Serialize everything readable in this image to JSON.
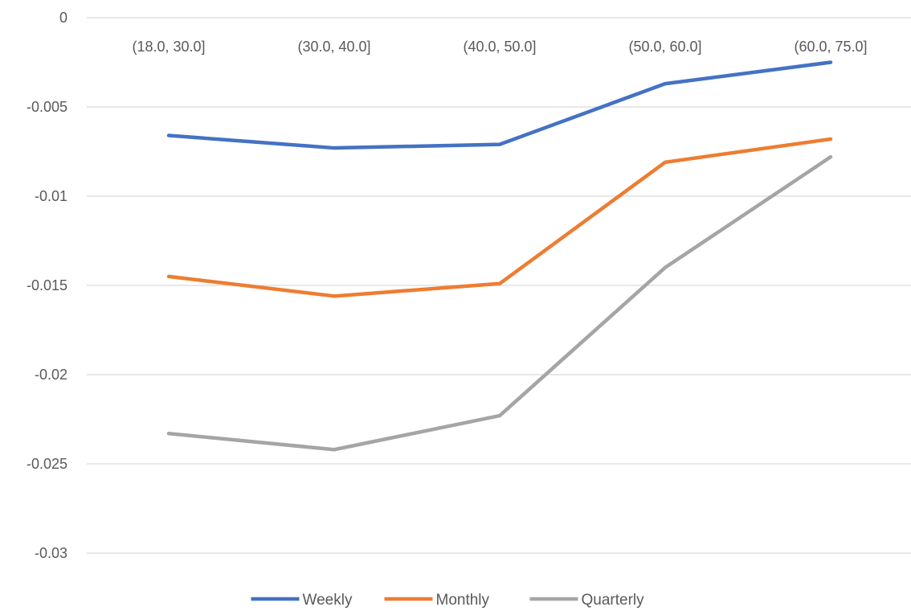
{
  "chart_data": {
    "type": "line",
    "title": "",
    "xlabel": "",
    "ylabel": "",
    "categories": [
      "(18.0, 30.0]",
      "(30.0, 40.0]",
      "(40.0, 50.0]",
      "(50.0, 60.0]",
      "(60.0, 75.0]"
    ],
    "series": [
      {
        "name": "Weekly",
        "color": "#4472C4",
        "values": [
          -0.0066,
          -0.0073,
          -0.0071,
          -0.0037,
          -0.0025
        ]
      },
      {
        "name": "Monthly",
        "color": "#ED7D31",
        "values": [
          -0.0145,
          -0.0156,
          -0.0149,
          -0.0081,
          -0.0068
        ]
      },
      {
        "name": "Quarterly",
        "color": "#A5A5A5",
        "values": [
          -0.0233,
          -0.0242,
          -0.0223,
          -0.014,
          -0.0078
        ]
      }
    ],
    "ylim": [
      -0.03,
      0
    ],
    "yticks": [
      0,
      -0.005,
      -0.01,
      -0.015,
      -0.02,
      -0.025,
      -0.03
    ],
    "ytick_labels": [
      "0",
      "-0.005",
      "-0.01",
      "-0.015",
      "-0.02",
      "-0.025",
      "-0.03"
    ],
    "x_tick_position": "top",
    "grid": true,
    "gridline_color": "#d9d9d9",
    "legend_position": "bottom"
  }
}
